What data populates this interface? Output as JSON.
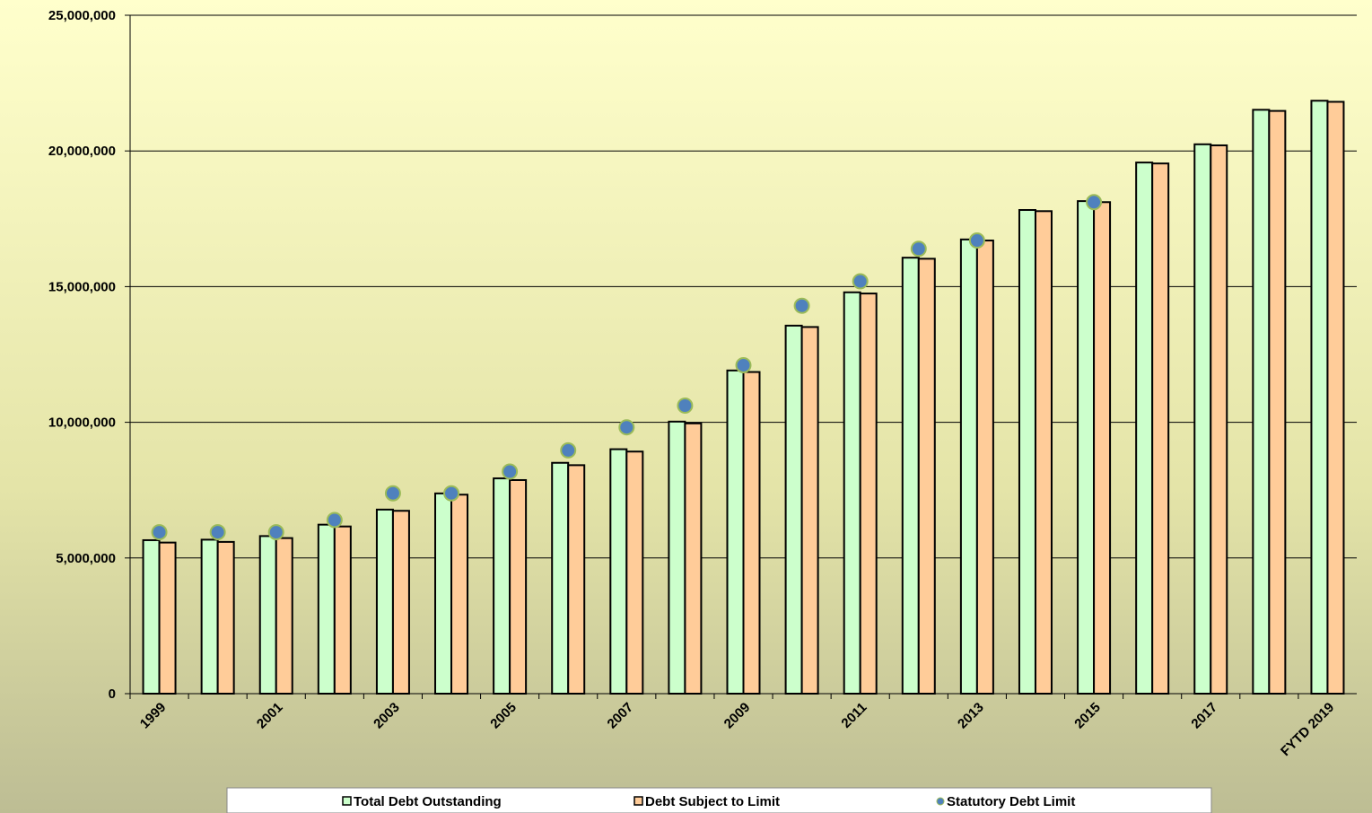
{
  "chart_data": {
    "type": "bar",
    "categories": [
      "1999",
      null,
      "2001",
      null,
      "2003",
      null,
      "2005",
      null,
      "2007",
      null,
      "2009",
      null,
      "2011",
      null,
      "2013",
      null,
      "2015",
      null,
      "2017",
      null,
      "FYTD 2019"
    ],
    "series": [
      {
        "name": "Total Debt Outstanding",
        "color": "#ccffcc",
        "mark": "bar",
        "values": [
          5656000,
          5674000,
          5807000,
          6228000,
          6783000,
          7379000,
          7933000,
          8507000,
          9008000,
          10025000,
          11910000,
          13562000,
          14790000,
          16066000,
          16738000,
          17824000,
          18151000,
          19573000,
          20245000,
          21516000,
          21850000
        ]
      },
      {
        "name": "Debt Subject to Limit",
        "color": "#ffcc99",
        "mark": "bar",
        "values": [
          5568000,
          5592000,
          5733000,
          6161000,
          6738000,
          7333000,
          7871000,
          8420000,
          8921000,
          9960000,
          11853000,
          13511000,
          14746000,
          16027000,
          16699000,
          17781000,
          18113000,
          19538000,
          20206000,
          21475000,
          21810000
        ]
      },
      {
        "name": "Statutory Debt Limit",
        "color": "#4f81bd",
        "mark": "dot",
        "values": [
          5950000,
          5950000,
          5950000,
          6400000,
          7384000,
          7384000,
          8184000,
          8965000,
          9815000,
          10615000,
          12104000,
          14294000,
          15194000,
          16394000,
          16699000,
          null,
          18113000,
          null,
          null,
          null,
          null
        ]
      }
    ],
    "ylim": [
      0,
      25000000
    ],
    "yticks": [
      0,
      {
        "value": 5000000,
        "label": "5,000,000"
      },
      {
        "value": 10000000,
        "label": "10,000,000"
      },
      {
        "value": 15000000,
        "label": "15,000,000"
      },
      {
        "value": 20000000,
        "label": "20,000,000"
      },
      {
        "value": 25000000,
        "label": "25,000,000"
      }
    ],
    "grid": true,
    "legend": "bottom"
  }
}
